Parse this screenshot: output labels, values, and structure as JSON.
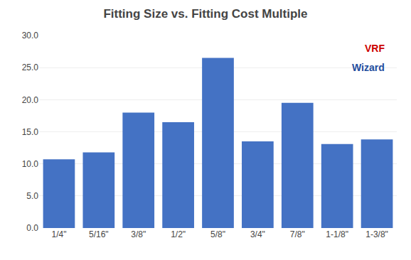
{
  "chart_data": {
    "type": "bar",
    "title": "Fitting Size vs. Fitting Cost Multiple",
    "categories": [
      "1/4\"",
      "5/16\"",
      "3/8\"",
      "1/2\"",
      "5/8\"",
      "3/4\"",
      "7/8\"",
      "1-1/8\"",
      "1-3/8\""
    ],
    "values": [
      10.7,
      11.8,
      18.0,
      16.5,
      26.5,
      13.5,
      19.5,
      13.1,
      13.8
    ],
    "color": "#4472C4",
    "ylim": [
      0,
      30
    ],
    "yticks": [
      {
        "value": 0,
        "label": "0.0"
      },
      {
        "value": 5,
        "label": "5.0"
      },
      {
        "value": 10,
        "label": "10.0"
      },
      {
        "value": 15,
        "label": "15.0"
      },
      {
        "value": 20,
        "label": "20.0"
      },
      {
        "value": 25,
        "label": "25.0"
      },
      {
        "value": 30,
        "label": "30.0"
      }
    ],
    "grid": true,
    "annotations": [
      {
        "text": "VRF",
        "color": "#CC0000"
      },
      {
        "text": "Wizard",
        "color": "#1F4E9E"
      }
    ]
  }
}
